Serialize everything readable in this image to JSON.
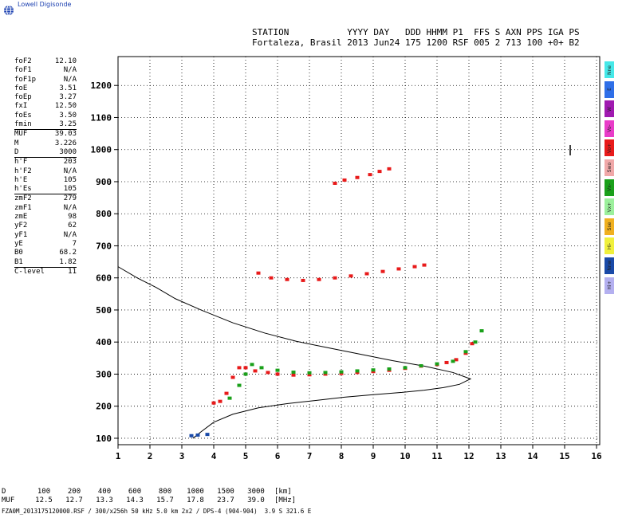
{
  "brand": "Lowell Digisonde",
  "header": {
    "line1": "STATION           YYYY DAY   DDD HHMM P1  FFS S AXN PPS IGA PS",
    "line2": "Fortaleza, Brasil 2013 Jun24 175 1200 RSF 005 2 713 100 +0+ B2"
  },
  "params": [
    {
      "name": "foF2",
      "value": "12.10"
    },
    {
      "name": "foF1",
      "value": "N/A"
    },
    {
      "name": "foF1p",
      "value": "N/A"
    },
    {
      "name": "foE",
      "value": "3.51"
    },
    {
      "name": "foEp",
      "value": "3.27"
    },
    {
      "name": "fxI",
      "value": "12.50"
    },
    {
      "name": "foEs",
      "value": "3.50"
    },
    {
      "name": "fmin",
      "value": "3.25"
    },
    {
      "sep": true
    },
    {
      "name": "MUF",
      "value": "39.03"
    },
    {
      "name": "M",
      "value": "3.226"
    },
    {
      "name": "D",
      "value": "3000"
    },
    {
      "sep": true
    },
    {
      "name": "h'F",
      "value": "203"
    },
    {
      "name": "h'F2",
      "value": "N/A"
    },
    {
      "name": "h'E",
      "value": "105"
    },
    {
      "name": "h'Es",
      "value": "105"
    },
    {
      "sep": true
    },
    {
      "name": "zmF2",
      "value": "279"
    },
    {
      "name": "zmF1",
      "value": "N/A"
    },
    {
      "name": "zmE",
      "value": "98"
    },
    {
      "name": "yF2",
      "value": "62"
    },
    {
      "name": "yF1",
      "value": "N/A"
    },
    {
      "name": "yE",
      "value": "7"
    },
    {
      "name": "B0",
      "value": "68.2"
    },
    {
      "name": "B1",
      "value": "1.82"
    },
    {
      "sep": true
    },
    {
      "name": "C-level",
      "value": "11"
    }
  ],
  "legend": [
    {
      "label": "Nne",
      "color": "#46e8e8"
    },
    {
      "label": "E",
      "color": "#2f6fe8"
    },
    {
      "label": "W",
      "color": "#a01ab0"
    },
    {
      "label": "Vo-",
      "color": "#e83cc8"
    },
    {
      "label": "Vo+",
      "color": "#e81a1a"
    },
    {
      "label": "Swo",
      "color": "#f0a8a8"
    },
    {
      "label": "Vx-",
      "color": "#1aa01a"
    },
    {
      "label": "Vx+",
      "color": "#9cf09c"
    },
    {
      "label": "Sse",
      "color": "#f0b020"
    },
    {
      "label": "Hi-",
      "color": "#f0f03c"
    },
    {
      "label": "Nnw",
      "color": "#1a4aa8"
    },
    {
      "label": "Hi+",
      "color": "#b4b0f0"
    }
  ],
  "muf_table": {
    "d_label": "D",
    "d_values": [
      "100",
      "200",
      "400",
      "600",
      "800",
      "1000",
      "1500",
      "3000"
    ],
    "d_unit": "[km]",
    "muf_label": "MUF",
    "muf_values": [
      "12.5",
      "12.7",
      "13.3",
      "14.3",
      "15.7",
      "17.8",
      "23.7",
      "39.0"
    ],
    "muf_unit": "[MHz]"
  },
  "footer": "FZA0M_2013175120000.RSF / 300/x256h 50 kHz 5.0 km 2x2 / DPS-4 (904-904)  3.9 S 321.6 E",
  "chart_data": {
    "type": "scatter",
    "xlim": [
      1,
      16
    ],
    "ylim": [
      80,
      1290
    ],
    "x_ticks": [
      1,
      2,
      3,
      4,
      5,
      6,
      7,
      8,
      9,
      10,
      11,
      12,
      13,
      14,
      15,
      16
    ],
    "y_ticks": [
      100,
      200,
      300,
      400,
      500,
      600,
      700,
      800,
      900,
      1000,
      1100,
      1200
    ],
    "grid": true,
    "traces": [
      {
        "name": "O-trace F layer",
        "color": "#e81a1a",
        "points": [
          [
            4.0,
            210
          ],
          [
            4.2,
            215
          ],
          [
            4.4,
            240
          ],
          [
            4.6,
            290
          ],
          [
            4.8,
            320
          ],
          [
            5.0,
            320
          ],
          [
            5.3,
            310
          ],
          [
            5.7,
            305
          ],
          [
            6.0,
            300
          ],
          [
            6.5,
            297
          ],
          [
            7.0,
            298
          ],
          [
            7.5,
            300
          ],
          [
            8.0,
            302
          ],
          [
            8.5,
            305
          ],
          [
            9.0,
            308
          ],
          [
            9.5,
            312
          ],
          [
            10.0,
            318
          ],
          [
            10.5,
            325
          ],
          [
            11.0,
            330
          ],
          [
            11.3,
            336
          ],
          [
            11.6,
            345
          ],
          [
            11.9,
            365
          ],
          [
            12.1,
            395
          ]
        ]
      },
      {
        "name": "X-trace F layer",
        "color": "#1aa01a",
        "points": [
          [
            4.5,
            225
          ],
          [
            4.8,
            265
          ],
          [
            5.0,
            300
          ],
          [
            5.2,
            330
          ],
          [
            5.5,
            320
          ],
          [
            6.0,
            312
          ],
          [
            6.5,
            306
          ],
          [
            7.0,
            304
          ],
          [
            7.5,
            305
          ],
          [
            8.0,
            307
          ],
          [
            8.5,
            310
          ],
          [
            9.0,
            313
          ],
          [
            9.5,
            316
          ],
          [
            10.0,
            320
          ],
          [
            10.5,
            326
          ],
          [
            11.0,
            332
          ],
          [
            11.5,
            340
          ],
          [
            11.9,
            370
          ],
          [
            12.2,
            400
          ],
          [
            12.4,
            435
          ]
        ]
      },
      {
        "name": "Second hop",
        "color": "#e81a1a",
        "points": [
          [
            5.4,
            615
          ],
          [
            5.8,
            600
          ],
          [
            6.3,
            595
          ],
          [
            6.8,
            592
          ],
          [
            7.3,
            595
          ],
          [
            7.8,
            600
          ],
          [
            8.3,
            606
          ],
          [
            8.8,
            613
          ],
          [
            9.3,
            620
          ],
          [
            9.8,
            628
          ],
          [
            10.3,
            635
          ],
          [
            10.6,
            640
          ]
        ]
      },
      {
        "name": "Third hop",
        "color": "#e81a1a",
        "points": [
          [
            7.8,
            895
          ],
          [
            8.1,
            905
          ],
          [
            8.5,
            913
          ],
          [
            8.9,
            922
          ],
          [
            9.2,
            932
          ],
          [
            9.5,
            940
          ]
        ]
      },
      {
        "name": "E layer",
        "color": "#1a4aa8",
        "points": [
          [
            3.3,
            108
          ],
          [
            3.5,
            110
          ],
          [
            3.8,
            112
          ]
        ]
      }
    ],
    "profile": {
      "name": "Electron density profile",
      "color": "#000000",
      "points": [
        [
          3.35,
          100
        ],
        [
          3.6,
          120
        ],
        [
          4.0,
          150
        ],
        [
          4.6,
          175
        ],
        [
          5.4,
          195
        ],
        [
          6.3,
          208
        ],
        [
          7.2,
          218
        ],
        [
          8.1,
          228
        ],
        [
          9.0,
          236
        ],
        [
          9.9,
          243
        ],
        [
          10.6,
          250
        ],
        [
          11.2,
          258
        ],
        [
          11.7,
          268
        ],
        [
          12.05,
          285
        ],
        [
          11.5,
          305
        ],
        [
          10.6,
          325
        ],
        [
          9.6,
          342
        ],
        [
          8.6,
          362
        ],
        [
          7.6,
          382
        ],
        [
          6.6,
          402
        ],
        [
          5.6,
          428
        ],
        [
          4.6,
          460
        ],
        [
          3.6,
          500
        ],
        [
          2.8,
          535
        ],
        [
          2.2,
          570
        ],
        [
          1.6,
          600
        ],
        [
          1.0,
          635
        ]
      ]
    }
  }
}
